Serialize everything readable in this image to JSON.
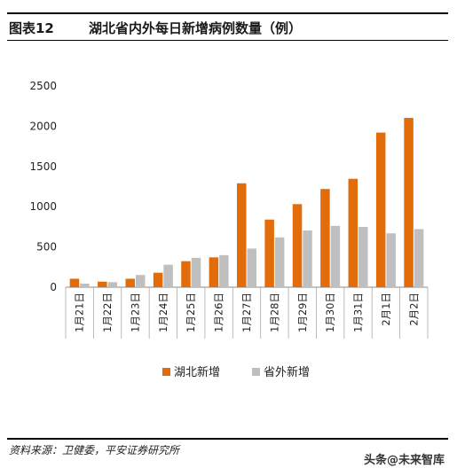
{
  "header": {
    "figure_label": "图表12",
    "title": "湖北省内外每日新增病例数量（例）"
  },
  "chart_data": {
    "type": "bar",
    "title": "湖北省内外每日新增病例数量（例）",
    "categories": [
      "1月21日",
      "1月22日",
      "1月23日",
      "1月24日",
      "1月25日",
      "1月26日",
      "1月27日",
      "1月28日",
      "1月29日",
      "1月30日",
      "1月31日",
      "2月1日",
      "2月2日"
    ],
    "series": [
      {
        "name": "湖北新增",
        "color": "#E36C0A",
        "values": [
          105,
          69,
          105,
          180,
          323,
          371,
          1291,
          840,
          1032,
          1220,
          1347,
          1921,
          2103
        ]
      },
      {
        "name": "省外新增",
        "color": "#BFBFBF",
        "values": [
          44,
          62,
          152,
          279,
          365,
          398,
          480,
          619,
          705,
          762,
          749,
          669,
          722
        ]
      }
    ],
    "ylim": [
      0,
      2500
    ],
    "yticks": [
      0,
      500,
      1000,
      1500,
      2000,
      2500
    ],
    "grid": false,
    "legend_position": "bottom"
  },
  "footer": {
    "source": "资料来源：卫健委，平安证券研究所"
  },
  "watermark": "头条@未来智库"
}
